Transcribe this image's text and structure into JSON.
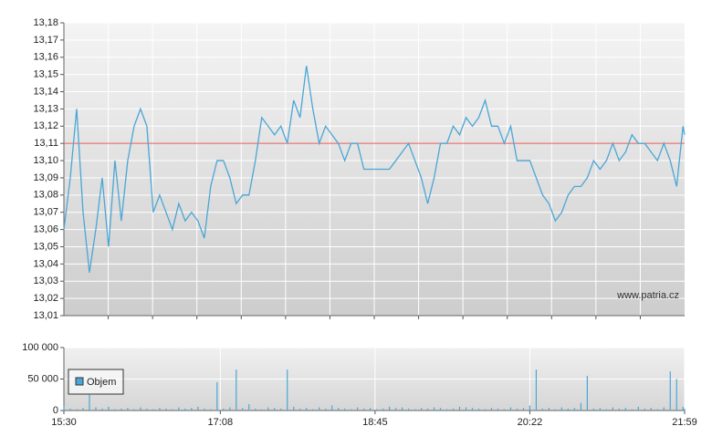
{
  "chart_data": [
    {
      "type": "line",
      "x": [
        "15:30",
        "15:34",
        "15:38",
        "15:42",
        "15:46",
        "15:50",
        "15:54",
        "15:58",
        "16:02",
        "16:06",
        "16:10",
        "16:14",
        "16:18",
        "16:22",
        "16:26",
        "16:30",
        "16:34",
        "16:38",
        "16:42",
        "16:46",
        "16:50",
        "16:54",
        "16:58",
        "17:02",
        "17:06",
        "17:10",
        "17:14",
        "17:18",
        "17:22",
        "17:26",
        "17:30",
        "17:34",
        "17:38",
        "17:42",
        "17:46",
        "17:50",
        "17:54",
        "17:58",
        "18:02",
        "18:06",
        "18:10",
        "18:14",
        "18:18",
        "18:22",
        "18:26",
        "18:30",
        "18:34",
        "18:38",
        "18:42",
        "18:46",
        "18:50",
        "18:54",
        "18:58",
        "19:02",
        "19:06",
        "19:10",
        "19:14",
        "19:18",
        "19:22",
        "19:26",
        "19:30",
        "19:34",
        "19:38",
        "19:42",
        "19:46",
        "19:50",
        "19:54",
        "19:58",
        "20:02",
        "20:06",
        "20:10",
        "20:14",
        "20:18",
        "20:22",
        "20:26",
        "20:30",
        "20:34",
        "20:38",
        "20:42",
        "20:46",
        "20:50",
        "20:54",
        "20:58",
        "21:02",
        "21:06",
        "21:10",
        "21:14",
        "21:18",
        "21:22",
        "21:26",
        "21:30",
        "21:34",
        "21:38",
        "21:42",
        "21:46",
        "21:50",
        "21:54",
        "21:58",
        "21:59"
      ],
      "values": [
        13.06,
        13.09,
        13.13,
        13.07,
        13.035,
        13.06,
        13.09,
        13.05,
        13.1,
        13.065,
        13.1,
        13.12,
        13.13,
        13.12,
        13.07,
        13.08,
        13.07,
        13.06,
        13.075,
        13.065,
        13.07,
        13.065,
        13.055,
        13.085,
        13.1,
        13.1,
        13.09,
        13.075,
        13.08,
        13.08,
        13.1,
        13.125,
        13.12,
        13.115,
        13.12,
        13.11,
        13.135,
        13.125,
        13.155,
        13.13,
        13.11,
        13.12,
        13.115,
        13.11,
        13.1,
        13.11,
        13.11,
        13.095,
        13.095,
        13.095,
        13.095,
        13.095,
        13.1,
        13.105,
        13.11,
        13.1,
        13.09,
        13.075,
        13.09,
        13.11,
        13.11,
        13.12,
        13.115,
        13.125,
        13.12,
        13.125,
        13.135,
        13.12,
        13.12,
        13.11,
        13.12,
        13.1,
        13.1,
        13.1,
        13.09,
        13.08,
        13.075,
        13.065,
        13.07,
        13.08,
        13.085,
        13.085,
        13.09,
        13.1,
        13.095,
        13.1,
        13.11,
        13.1,
        13.105,
        13.115,
        13.11,
        13.11,
        13.105,
        13.1,
        13.11,
        13.1,
        13.085,
        13.12,
        13.115
      ],
      "color": "#4aa6d6",
      "reference_line": {
        "value": 13.11,
        "color": "#e85a5a"
      },
      "xlim": [
        "15:30",
        "21:59"
      ],
      "ylim": [
        13.01,
        13.18
      ],
      "yticks": [
        {
          "value": 13.01,
          "label": "13,01"
        },
        {
          "value": 13.02,
          "label": "13,02"
        },
        {
          "value": 13.03,
          "label": "13,03"
        },
        {
          "value": 13.04,
          "label": "13,04"
        },
        {
          "value": 13.05,
          "label": "13,05"
        },
        {
          "value": 13.06,
          "label": "13,06"
        },
        {
          "value": 13.07,
          "label": "13,07"
        },
        {
          "value": 13.08,
          "label": "13,08"
        },
        {
          "value": 13.09,
          "label": "13,09"
        },
        {
          "value": 13.1,
          "label": "13,10"
        },
        {
          "value": 13.11,
          "label": "13,11"
        },
        {
          "value": 13.12,
          "label": "13,12"
        },
        {
          "value": 13.13,
          "label": "13,13"
        },
        {
          "value": 13.14,
          "label": "13,14"
        },
        {
          "value": 13.15,
          "label": "13,15"
        },
        {
          "value": 13.16,
          "label": "13,16"
        },
        {
          "value": 13.17,
          "label": "13,17"
        },
        {
          "value": 13.18,
          "label": "13,18"
        }
      ],
      "grid": true,
      "watermark": "www.patria.cz"
    },
    {
      "type": "bar",
      "x": [
        "15:30",
        "15:34",
        "15:38",
        "15:42",
        "15:46",
        "15:50",
        "15:54",
        "15:58",
        "16:02",
        "16:06",
        "16:10",
        "16:14",
        "16:18",
        "16:22",
        "16:26",
        "16:30",
        "16:34",
        "16:38",
        "16:42",
        "16:46",
        "16:50",
        "16:54",
        "16:58",
        "17:02",
        "17:06",
        "17:10",
        "17:14",
        "17:18",
        "17:22",
        "17:26",
        "17:30",
        "17:34",
        "17:38",
        "17:42",
        "17:46",
        "17:50",
        "17:54",
        "17:58",
        "18:02",
        "18:06",
        "18:10",
        "18:14",
        "18:18",
        "18:22",
        "18:26",
        "18:30",
        "18:34",
        "18:38",
        "18:42",
        "18:46",
        "18:50",
        "18:54",
        "18:58",
        "19:02",
        "19:06",
        "19:10",
        "19:14",
        "19:18",
        "19:22",
        "19:26",
        "19:30",
        "19:34",
        "19:38",
        "19:42",
        "19:46",
        "19:50",
        "19:54",
        "19:58",
        "20:02",
        "20:06",
        "20:10",
        "20:14",
        "20:18",
        "20:22",
        "20:26",
        "20:30",
        "20:34",
        "20:38",
        "20:42",
        "20:46",
        "20:50",
        "20:54",
        "20:58",
        "21:02",
        "21:06",
        "21:10",
        "21:14",
        "21:18",
        "21:22",
        "21:26",
        "21:30",
        "21:34",
        "21:38",
        "21:42",
        "21:46",
        "21:50",
        "21:54",
        "21:58",
        "21:59"
      ],
      "series": [
        {
          "name": "Objem",
          "color": "#4aa6d6",
          "values": [
            8000,
            3000,
            2000,
            4000,
            25000,
            5000,
            3000,
            6000,
            2000,
            3000,
            4000,
            2000,
            5000,
            3000,
            2000,
            4000,
            3000,
            2000,
            5000,
            3000,
            4000,
            6000,
            3000,
            2000,
            45000,
            3000,
            5000,
            65000,
            4000,
            10000,
            3000,
            2000,
            5000,
            4000,
            3000,
            65000,
            6000,
            3000,
            4000,
            2000,
            5000,
            3000,
            8000,
            4000,
            3000,
            2000,
            5000,
            3000,
            4000,
            2000,
            3000,
            6000,
            4000,
            5000,
            3000,
            2000,
            4000,
            3000,
            5000,
            4000,
            2000,
            3000,
            6000,
            5000,
            4000,
            3000,
            2000,
            4000,
            3000,
            2000,
            5000,
            3000,
            4000,
            8000,
            65000,
            3000,
            4000,
            2000,
            5000,
            3000,
            4000,
            12000,
            55000,
            3000,
            4000,
            2000,
            5000,
            3000,
            4000,
            2000,
            6000,
            3000,
            4000,
            2000,
            5000,
            62000,
            50000,
            6000,
            3000
          ]
        }
      ],
      "xlim": [
        "15:30",
        "21:59"
      ],
      "xticks": [
        "15:30",
        "17:08",
        "18:45",
        "20:22",
        "21:59"
      ],
      "ylim": [
        0,
        100000
      ],
      "yticks": [
        {
          "value": 0,
          "label": "0"
        },
        {
          "value": 50000,
          "label": "50 000"
        },
        {
          "value": 100000,
          "label": "100 000"
        }
      ],
      "grid": true
    }
  ]
}
